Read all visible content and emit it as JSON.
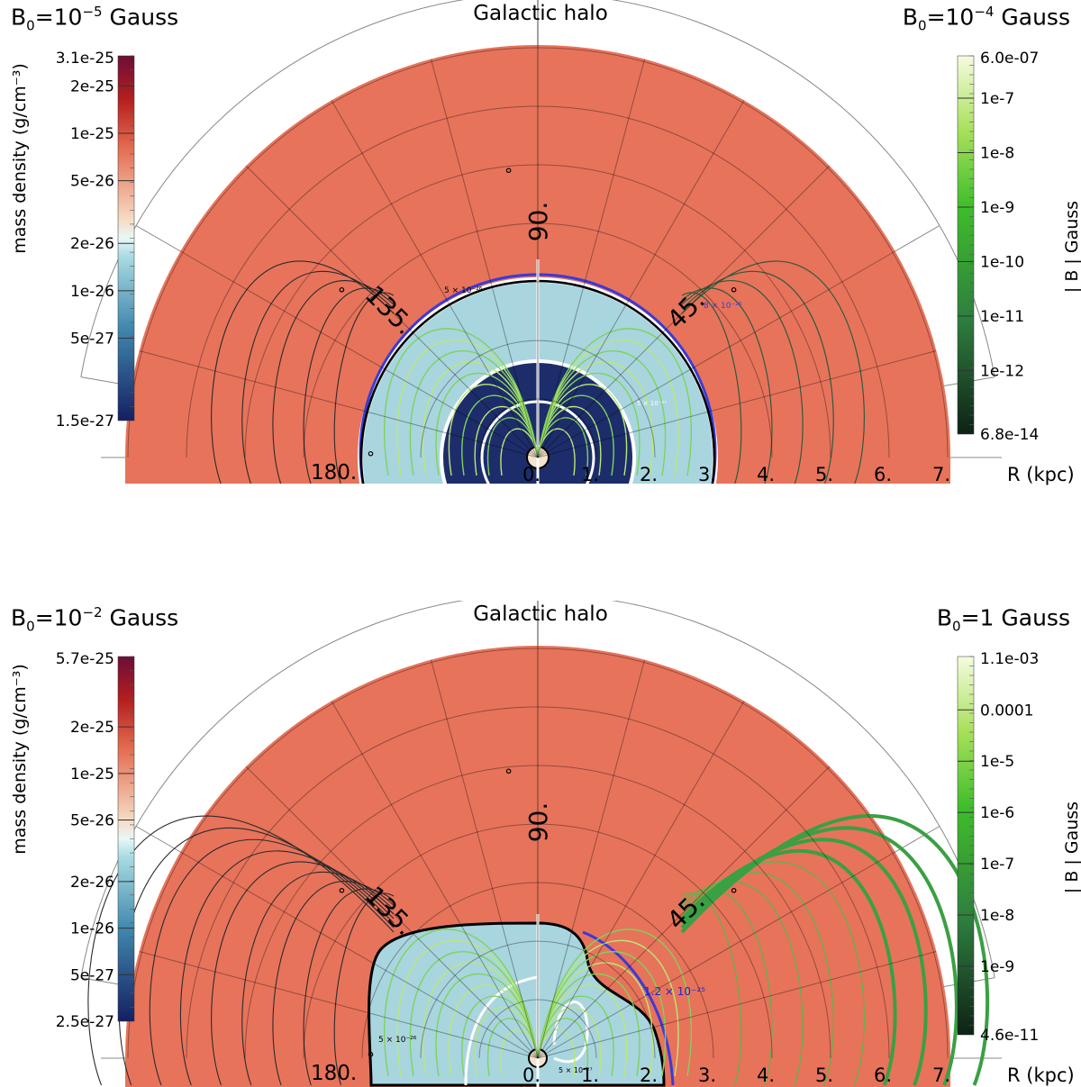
{
  "chart_data": [
    {
      "type": "heatmap",
      "subtype": "polar-half-disk",
      "title": "Galactic halo",
      "left_label": "B0=10^-5 Gauss",
      "left_label_base": "B",
      "left_label_sub": "0",
      "left_label_eq": "=10",
      "left_label_exp": "−5",
      "left_label_unit": " Gauss",
      "right_label": "B0=10^-4 Gauss",
      "right_label_base": "B",
      "right_label_sub": "0",
      "right_label_eq": "=10",
      "right_label_exp": "−4",
      "right_label_unit": " Gauss",
      "radial_axis": {
        "label": "R (kpc)",
        "range": [
          0,
          7
        ],
        "ticks": [
          "0.",
          "1.",
          "2.",
          "3.",
          "4.",
          "5.",
          "6.",
          "7."
        ]
      },
      "angle_ticks": [
        "45.",
        "90.",
        "135.",
        "180."
      ],
      "angle_values": [
        45,
        90,
        135,
        180
      ],
      "degree_symbol": "°",
      "density_colorbar": {
        "label": "mass density  (g/cm⁻³)",
        "min": "1.5e-27",
        "max": "3.1e-25",
        "ticks": [
          "2e-25",
          "1e-25",
          "5e-26",
          "2e-26",
          "1e-26",
          "5e-27"
        ],
        "tick_values": [
          2e-25,
          1e-25,
          5e-26,
          2e-26,
          1e-26,
          5e-27
        ],
        "range": [
          1.5e-27,
          3.1e-25
        ],
        "scale": "log"
      },
      "field_colorbar": {
        "label": "| B | Gauss",
        "min": "6.8e-14",
        "max": "6.0e-07",
        "ticks": [
          "1e-7",
          "1e-8",
          "1e-9",
          "1e-10",
          "1e-11",
          "1e-12"
        ],
        "tick_values": [
          1e-07,
          1e-08,
          1e-09,
          1e-10,
          1e-11,
          1e-12
        ],
        "range": [
          6.8e-14,
          6e-07
        ],
        "scale": "log"
      },
      "contour_labels": [
        "5 × 10⁻²⁶",
        "8 × 10⁻²⁶",
        "5 × 10⁻²⁷"
      ]
    },
    {
      "type": "heatmap",
      "subtype": "polar-half-disk",
      "title": "Galactic halo",
      "left_label": "B0=10^-2 Gauss",
      "left_label_base": "B",
      "left_label_sub": "0",
      "left_label_eq": "=10",
      "left_label_exp": "−2",
      "left_label_unit": " Gauss",
      "right_label": "B0=1 Gauss",
      "right_label_base": "B",
      "right_label_sub": "0",
      "right_label_eq": "=1",
      "right_label_exp": "",
      "right_label_unit": " Gauss",
      "radial_axis": {
        "label": "R (kpc)",
        "range": [
          0,
          7
        ],
        "ticks": [
          "0.",
          "1.",
          "2.",
          "3.",
          "4.",
          "5.",
          "6.",
          "7."
        ]
      },
      "angle_ticks": [
        "45.",
        "90.",
        "135.",
        "180."
      ],
      "angle_values": [
        45,
        90,
        135,
        180
      ],
      "degree_symbol": "°",
      "density_colorbar": {
        "label": "mass density  (g/cm⁻³)",
        "min": "2.5e-27",
        "max": "5.7e-25",
        "ticks": [
          "2e-25",
          "1e-25",
          "5e-26",
          "2e-26",
          "1e-26",
          "5e-27"
        ],
        "tick_values": [
          2e-25,
          1e-25,
          5e-26,
          2e-26,
          1e-26,
          5e-27
        ],
        "range": [
          2.5e-27,
          5.7e-25
        ],
        "scale": "log"
      },
      "field_colorbar": {
        "label": "| B | Gauss",
        "min": "4.6e-11",
        "max": "1.1e-03",
        "ticks": [
          "0.0001",
          "1e-5",
          "1e-6",
          "1e-7",
          "1e-8",
          "1e-9"
        ],
        "tick_values": [
          0.0001,
          1e-05,
          1e-06,
          1e-07,
          1e-08,
          1e-09
        ],
        "range": [
          4.6e-11,
          0.0011
        ],
        "scale": "log"
      },
      "contour_labels": [
        "1.2 × 10⁻²⁵",
        "5 × 10⁻²⁶",
        "5 × 10⁻²⁷"
      ]
    }
  ],
  "colors": {
    "halo": "#e7735b",
    "white_ring": "#ffffff",
    "inner_cool": "#a9d5df",
    "core_dark": "#1d2d6b",
    "field_green": "#4fb83b",
    "field_dark": "#2f5a3d",
    "contour_blue": "#3a3ad8",
    "grid": "#000000"
  }
}
